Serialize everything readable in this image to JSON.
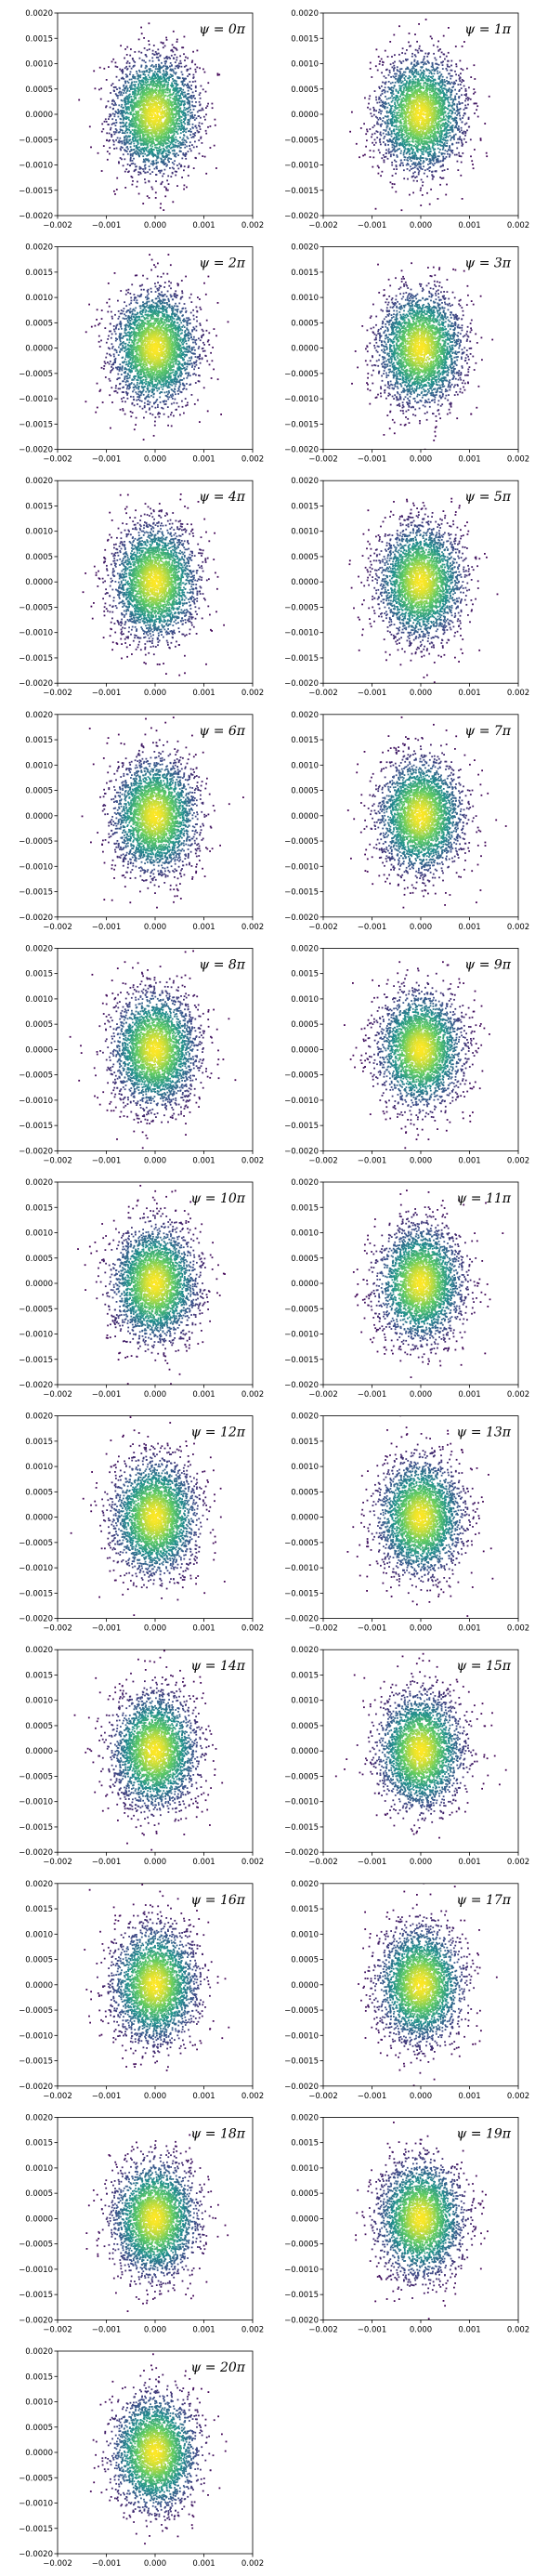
{
  "chart_data": {
    "type": "scatter",
    "layout": {
      "columns": 2,
      "rows": 11
    },
    "xlim": [
      -0.002,
      0.002
    ],
    "ylim": [
      -0.002,
      0.002
    ],
    "x_ticks": [
      "−0.002",
      "−0.001",
      "0.000",
      "0.001",
      "0.002"
    ],
    "x_tick_values": [
      -0.002,
      -0.001,
      0.0,
      0.001,
      0.002
    ],
    "y_ticks": [
      "0.0020",
      "0.0015",
      "0.0010",
      "0.0005",
      "0.0000",
      "−0.0005",
      "−0.0010",
      "−0.0015",
      "−0.0020"
    ],
    "y_tick_values": [
      0.002,
      0.0015,
      0.001,
      0.0005,
      0.0,
      -0.0005,
      -0.001,
      -0.0015,
      -0.002
    ],
    "colormap": [
      "#440154",
      "#3b528b",
      "#21908d",
      "#5dc963",
      "#fde725"
    ],
    "distribution": {
      "mean": [
        0.0,
        0.0
      ],
      "sigma_x": 0.00042,
      "sigma_y": 0.00055
    },
    "panels": [
      {
        "label": "ψ = 0π"
      },
      {
        "label": "ψ = 1π"
      },
      {
        "label": "ψ = 2π"
      },
      {
        "label": "ψ = 3π"
      },
      {
        "label": "ψ = 4π"
      },
      {
        "label": "ψ = 5π"
      },
      {
        "label": "ψ = 6π"
      },
      {
        "label": "ψ = 7π"
      },
      {
        "label": "ψ = 8π"
      },
      {
        "label": "ψ = 9π"
      },
      {
        "label": "ψ = 10π"
      },
      {
        "label": "ψ = 11π"
      },
      {
        "label": "ψ = 12π"
      },
      {
        "label": "ψ = 13π"
      },
      {
        "label": "ψ = 14π"
      },
      {
        "label": "ψ = 15π"
      },
      {
        "label": "ψ = 16π"
      },
      {
        "label": "ψ = 17π"
      },
      {
        "label": "ψ = 18π"
      },
      {
        "label": "ψ = 19π"
      },
      {
        "label": "ψ = 20π"
      }
    ]
  }
}
